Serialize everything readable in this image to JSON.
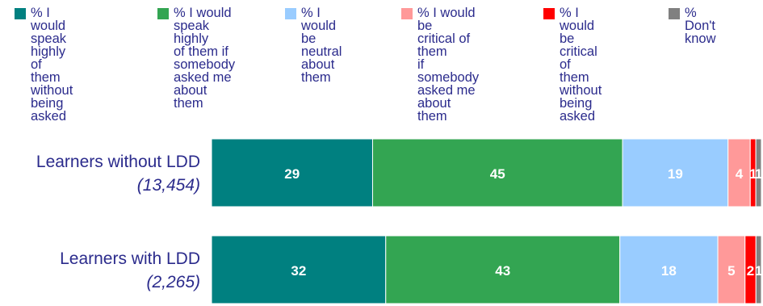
{
  "chart_data": {
    "type": "bar",
    "orientation": "horizontal",
    "stacked": true,
    "percent_stacked": true,
    "grid": false,
    "legend_position": "top",
    "categories": [
      {
        "label": "Learners without LDD",
        "count": "(13,454)"
      },
      {
        "label": "Learners with LDD",
        "count": "(2,265)"
      }
    ],
    "series": [
      {
        "name": "% I would\nspeak highly\nof them without\nbeing asked",
        "color": "#008080",
        "values": [
          29,
          32
        ],
        "labels": [
          "29",
          "32"
        ]
      },
      {
        "name": "% I would\nspeak highly\nof them if\nsomebody\nasked me\nabout them",
        "color": "#33a552",
        "values": [
          45,
          43
        ],
        "labels": [
          "45",
          "43"
        ]
      },
      {
        "name": "% I would\nbe neutral\nabout them",
        "color": "#99ccff",
        "values": [
          19,
          18
        ],
        "labels": [
          "19",
          "18"
        ]
      },
      {
        "name": "% I would be\ncritical of them\nif somebody\nasked me\nabout them",
        "color": "#ff9999",
        "values": [
          4,
          5
        ],
        "labels": [
          "4",
          "5"
        ]
      },
      {
        "name": "% I would\nbe critical of\nthem without\nbeing asked",
        "color": "#ff0000",
        "values": [
          1,
          2
        ],
        "labels": [
          "1",
          "2"
        ]
      },
      {
        "name": "% Don't\nknow",
        "color": "#808080",
        "values": [
          1,
          1
        ],
        "labels": [
          "1",
          "1"
        ]
      }
    ]
  }
}
